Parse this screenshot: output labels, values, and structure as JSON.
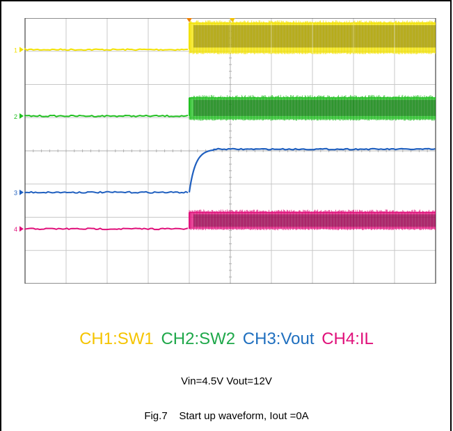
{
  "chart_data": {
    "type": "line",
    "title": "",
    "xlabel": "",
    "ylabel": "",
    "grid": true,
    "grid_divisions": {
      "x": 10,
      "y": 8
    },
    "x_range_div": [
      0,
      10
    ],
    "y_range_div": [
      0,
      8
    ],
    "trigger_time_div": 4.0,
    "series": [
      {
        "name": "CH1:SW1",
        "channel_marker": "1",
        "color": "#f2e100",
        "baseline_div": 7.05,
        "high_div": 7.85,
        "low_div": 6.95,
        "start_div": 4.0,
        "shape": "switching"
      },
      {
        "name": "CH2:SW2",
        "channel_marker": "2",
        "color": "#1fbf1f",
        "baseline_div": 5.05,
        "high_div": 5.6,
        "low_div": 4.95,
        "start_div": 4.0,
        "shape": "switching"
      },
      {
        "name": "CH3:Vout",
        "channel_marker": "3",
        "color": "#1f5fbf",
        "baseline_div": 2.75,
        "high_div": 4.05,
        "start_div": 4.0,
        "shape": "rise"
      },
      {
        "name": "CH4:IL",
        "channel_marker": "4",
        "color": "#e0107a",
        "baseline_div": 1.65,
        "high_div": 2.15,
        "low_div": 1.65,
        "start_div": 4.0,
        "shape": "switching"
      }
    ]
  },
  "legend": {
    "ch1": "CH1:SW1",
    "ch2": "CH2:SW2",
    "ch3": "CH3:Vout",
    "ch4": "CH4:IL",
    "ch1_color": "#f5c400",
    "ch2_color": "#1fa84a",
    "ch3_color": "#1f6fbf",
    "ch4_color": "#e0107a"
  },
  "conditions": "Vin=4.5V Vout=12V",
  "caption": "Fig.7    Start up waveform, Iout =0A"
}
